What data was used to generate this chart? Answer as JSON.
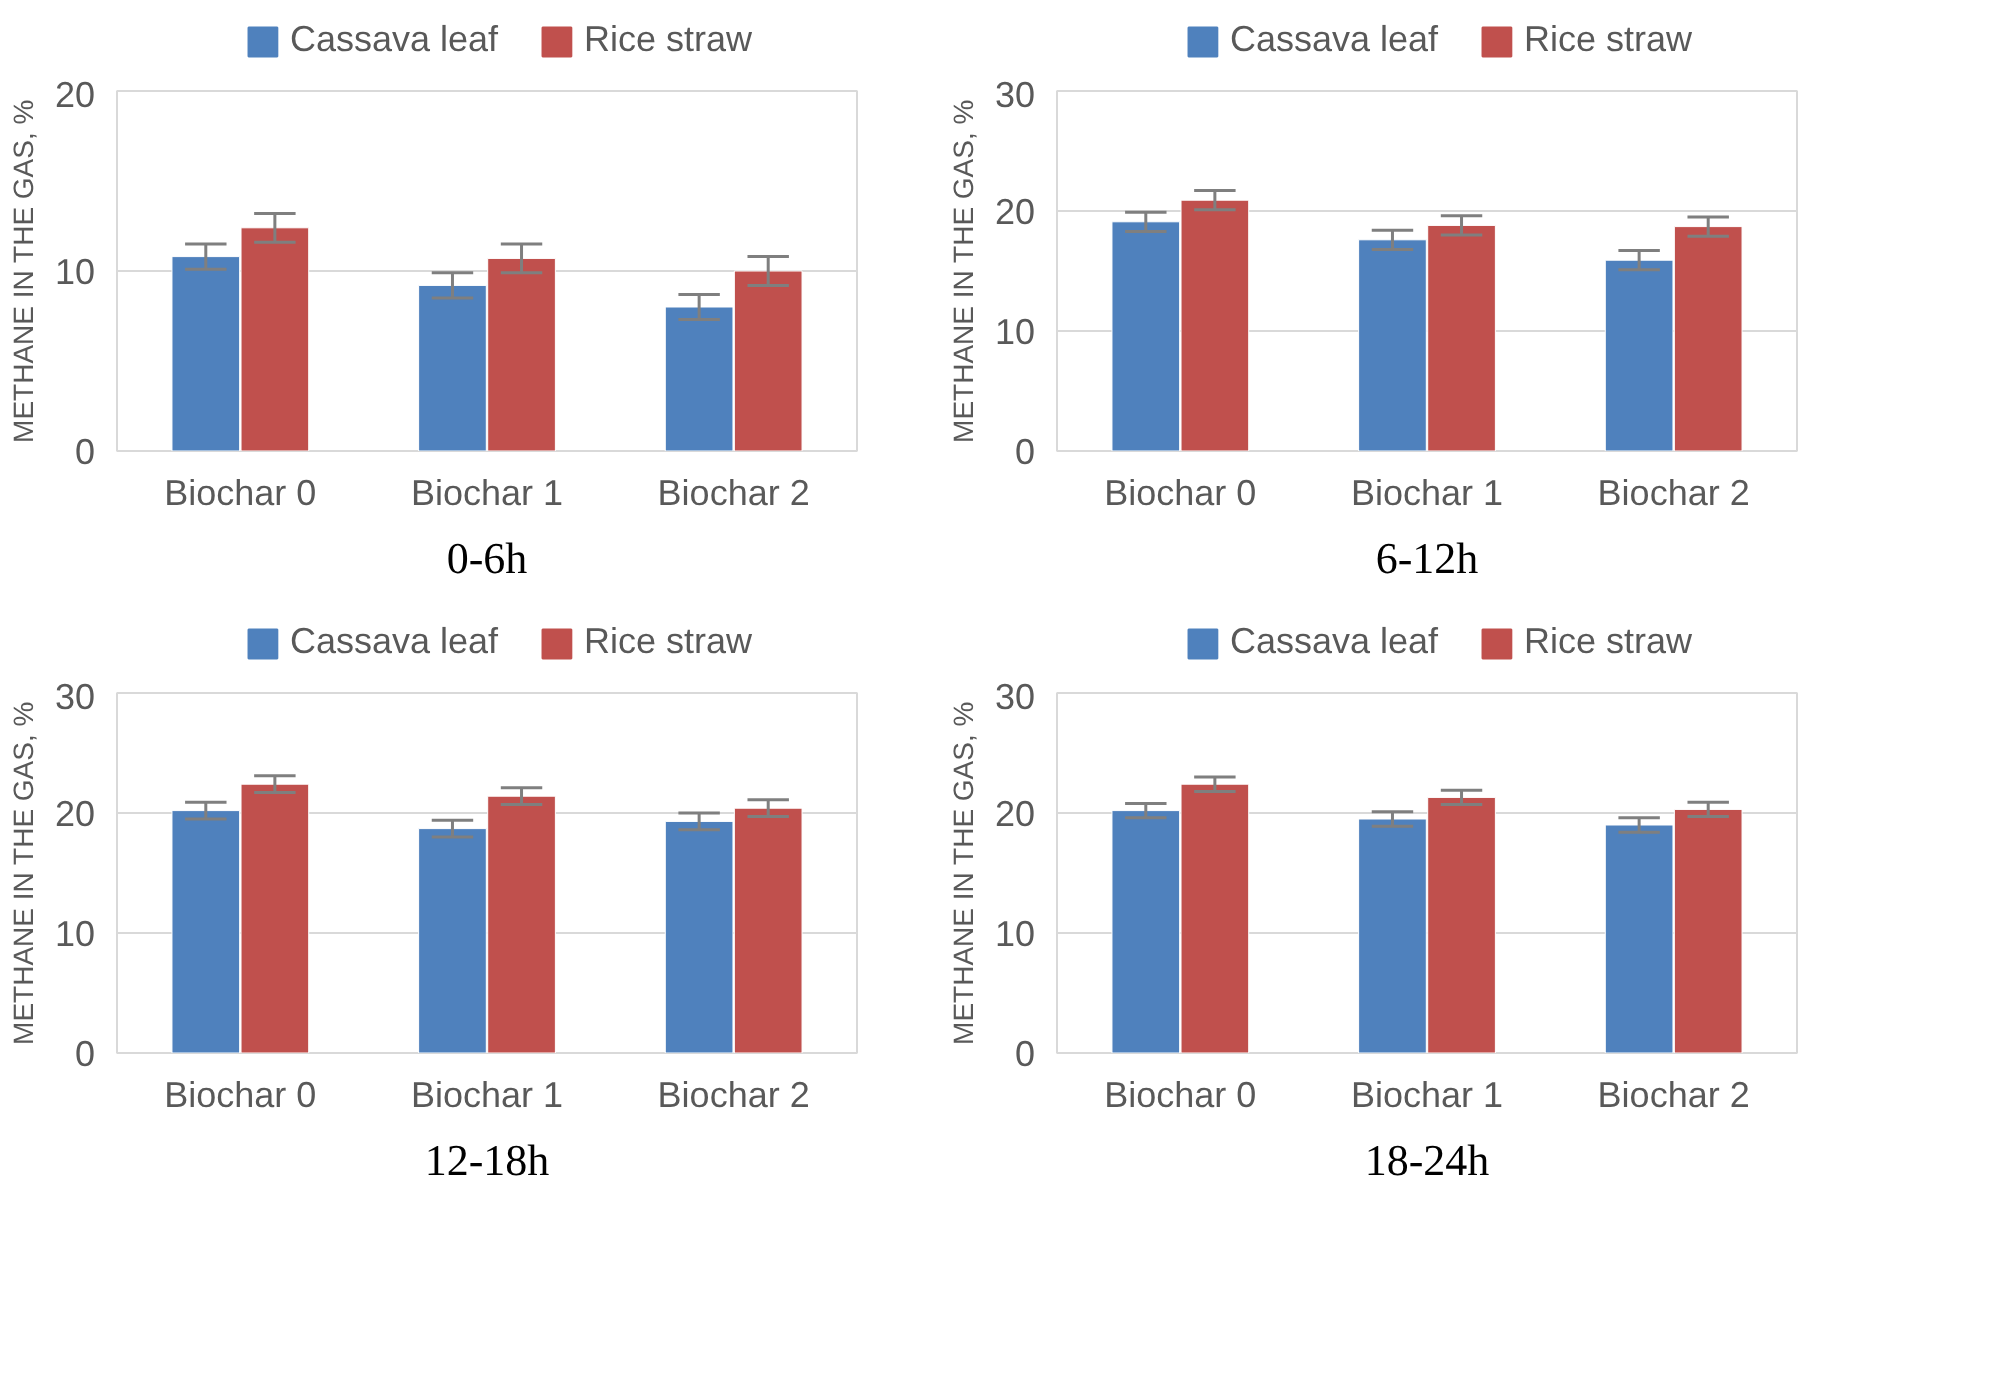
{
  "chart_data": [
    {
      "type": "bar",
      "title": "0-6h",
      "ylabel": "METHANE IN THE GAS, %",
      "categories": [
        "Biochar 0",
        "Biochar 1",
        "Biochar 2"
      ],
      "ylim": [
        0,
        20
      ],
      "yticks": [
        0,
        10,
        20
      ],
      "grid": "y",
      "legend": "top",
      "series": [
        {
          "name": "Cassava leaf",
          "color": "#4f81bd",
          "values": [
            10.8,
            9.2,
            8.0
          ],
          "errors": [
            0.7,
            0.7,
            0.7
          ]
        },
        {
          "name": "Rice straw",
          "color": "#c0504d",
          "values": [
            12.4,
            10.7,
            10.0
          ],
          "errors": [
            0.8,
            0.8,
            0.8
          ]
        }
      ]
    },
    {
      "type": "bar",
      "title": "6-12h",
      "ylabel": "METHANE IN THE GAS, %",
      "categories": [
        "Biochar 0",
        "Biochar 1",
        "Biochar 2"
      ],
      "ylim": [
        0,
        30
      ],
      "yticks": [
        0,
        10,
        20,
        30
      ],
      "grid": "y",
      "legend": "top",
      "series": [
        {
          "name": "Cassava leaf",
          "color": "#4f81bd",
          "values": [
            19.1,
            17.6,
            15.9
          ],
          "errors": [
            0.8,
            0.8,
            0.8
          ]
        },
        {
          "name": "Rice straw",
          "color": "#c0504d",
          "values": [
            20.9,
            18.8,
            18.7
          ],
          "errors": [
            0.8,
            0.8,
            0.8
          ]
        }
      ]
    },
    {
      "type": "bar",
      "title": "12-18h",
      "ylabel": "METHANE IN THE GAS, %",
      "categories": [
        "Biochar 0",
        "Biochar 1",
        "Biochar 2"
      ],
      "ylim": [
        0,
        30
      ],
      "yticks": [
        0,
        10,
        20,
        30
      ],
      "grid": "y",
      "legend": "top",
      "series": [
        {
          "name": "Cassava leaf",
          "color": "#4f81bd",
          "values": [
            20.2,
            18.7,
            19.3
          ],
          "errors": [
            0.7,
            0.7,
            0.7
          ]
        },
        {
          "name": "Rice straw",
          "color": "#c0504d",
          "values": [
            22.4,
            21.4,
            20.4
          ],
          "errors": [
            0.7,
            0.7,
            0.7
          ]
        }
      ]
    },
    {
      "type": "bar",
      "title": "18-24h",
      "ylabel": "METHANE IN THE GAS, %",
      "categories": [
        "Biochar 0",
        "Biochar 1",
        "Biochar 2"
      ],
      "ylim": [
        0,
        30
      ],
      "yticks": [
        0,
        10,
        20,
        30
      ],
      "grid": "y",
      "legend": "top",
      "series": [
        {
          "name": "Cassava leaf",
          "color": "#4f81bd",
          "values": [
            20.2,
            19.5,
            19.0
          ],
          "errors": [
            0.6,
            0.6,
            0.6
          ]
        },
        {
          "name": "Rice straw",
          "color": "#c0504d",
          "values": [
            22.4,
            21.3,
            20.3
          ],
          "errors": [
            0.6,
            0.6,
            0.6
          ]
        }
      ]
    }
  ]
}
